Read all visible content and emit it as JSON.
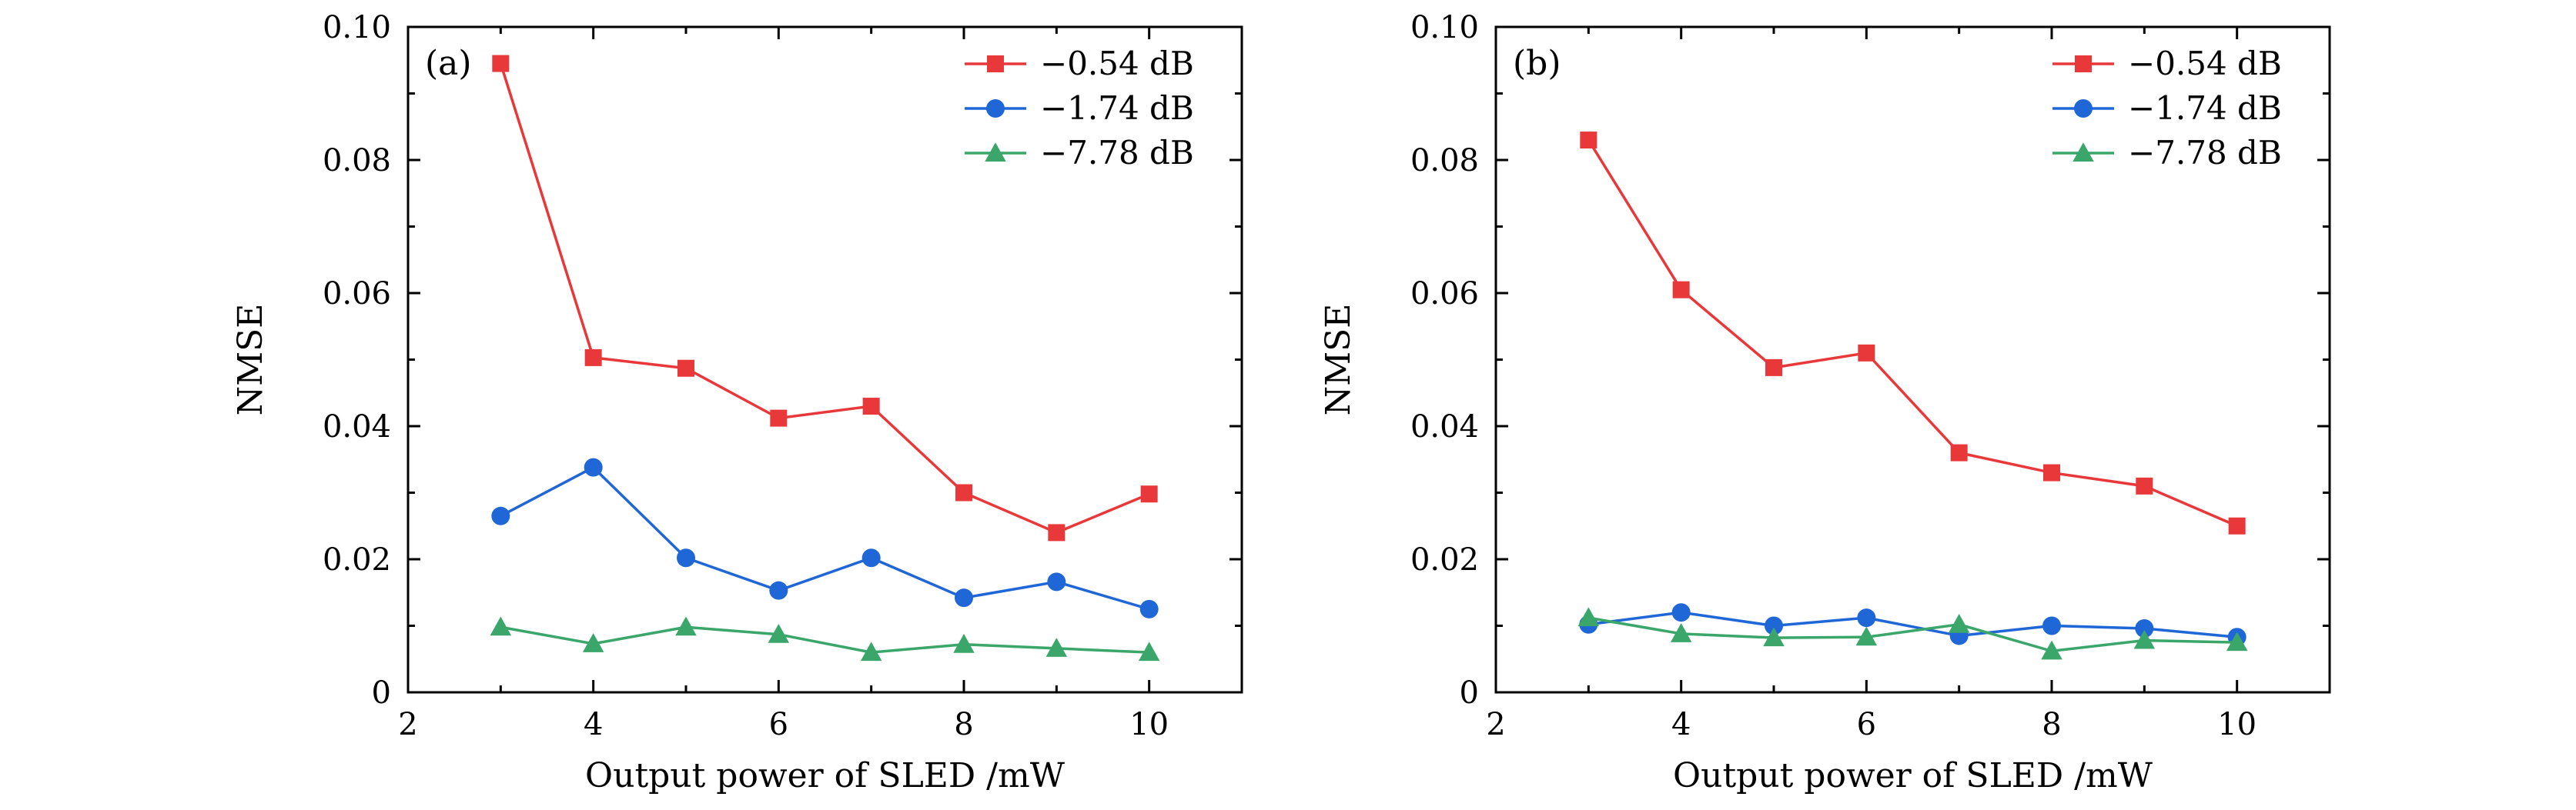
{
  "colors": {
    "s1": "#e8383a",
    "s2": "#1f66d6",
    "s3": "#3aa669"
  },
  "chart_data": [
    {
      "type": "line",
      "panel_label": "(a)",
      "xlabel": "Output power of SLED /mW",
      "ylabel": "NMSE",
      "xlim": [
        2,
        11
      ],
      "ylim": [
        0,
        0.1
      ],
      "xticks": [
        "2",
        "4",
        "6",
        "8",
        "10"
      ],
      "xtick_values": [
        2,
        4,
        6,
        8,
        10
      ],
      "yticks": [
        "0",
        "0.02",
        "0.04",
        "0.06",
        "0.08",
        "0.10"
      ],
      "ytick_values": [
        0,
        0.02,
        0.04,
        0.06,
        0.08,
        0.1
      ],
      "legend_position": "top-right",
      "x": [
        3,
        4,
        5,
        6,
        7,
        8,
        9,
        10
      ],
      "series": [
        {
          "name": "−0.54 dB",
          "marker": "square",
          "color": "#e8383a",
          "values": [
            0.0945,
            0.0503,
            0.0487,
            0.0412,
            0.043,
            0.03,
            0.024,
            0.0298
          ]
        },
        {
          "name": "−1.74 dB",
          "marker": "circle",
          "color": "#1f66d6",
          "values": [
            0.0265,
            0.0338,
            0.0202,
            0.0153,
            0.0202,
            0.0142,
            0.0166,
            0.0125
          ]
        },
        {
          "name": "−7.78 dB",
          "marker": "triangle",
          "color": "#3aa669",
          "values": [
            0.0098,
            0.0073,
            0.0098,
            0.0087,
            0.006,
            0.0072,
            0.0066,
            0.006
          ]
        }
      ]
    },
    {
      "type": "line",
      "panel_label": "(b)",
      "xlabel": "Output power of SLED /mW",
      "ylabel": "NMSE",
      "xlim": [
        2,
        11
      ],
      "ylim": [
        0,
        0.1
      ],
      "xticks": [
        "2",
        "4",
        "6",
        "8",
        "10"
      ],
      "xtick_values": [
        2,
        4,
        6,
        8,
        10
      ],
      "yticks": [
        "0",
        "0.02",
        "0.04",
        "0.06",
        "0.08",
        "0.10"
      ],
      "ytick_values": [
        0,
        0.02,
        0.04,
        0.06,
        0.08,
        0.1
      ],
      "legend_position": "top-right",
      "x": [
        3,
        4,
        5,
        6,
        7,
        8,
        9,
        10
      ],
      "series": [
        {
          "name": "−0.54 dB",
          "marker": "square",
          "color": "#e8383a",
          "values": [
            0.083,
            0.0605,
            0.0488,
            0.051,
            0.036,
            0.033,
            0.031,
            0.025
          ]
        },
        {
          "name": "−1.74 dB",
          "marker": "circle",
          "color": "#1f66d6",
          "values": [
            0.0102,
            0.012,
            0.01,
            0.0112,
            0.0085,
            0.01,
            0.0096,
            0.0083
          ]
        },
        {
          "name": "−7.78 dB",
          "marker": "triangle",
          "color": "#3aa669",
          "values": [
            0.0112,
            0.0088,
            0.0082,
            0.0083,
            0.0102,
            0.0062,
            0.0078,
            0.0075
          ]
        }
      ]
    }
  ]
}
